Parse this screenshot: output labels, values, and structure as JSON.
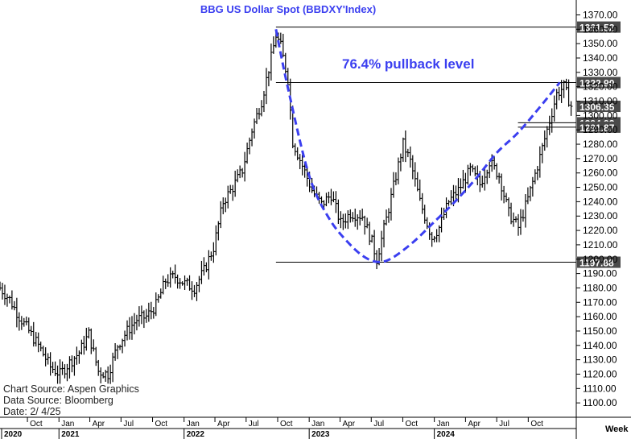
{
  "chart_data": {
    "type": "ohlc",
    "title": "BBG  US  Dollar  Spot  (BBDXY'Index)",
    "annotation": "76.4% pullback level",
    "frequency_label": "Week",
    "y_range": [
      1090,
      1377
    ],
    "y_ticks": [
      1100,
      1110,
      1120,
      1130,
      1140,
      1150,
      1160,
      1170,
      1180,
      1190,
      1200,
      1210,
      1220,
      1230,
      1240,
      1250,
      1260,
      1270,
      1280,
      1290,
      1300,
      1310,
      1320,
      1330,
      1340,
      1350,
      1360,
      1370
    ],
    "x_start": "2020-07-13",
    "x_end": "2025-02-04",
    "month_ticks": [
      {
        "date": "2020-10-01",
        "label": "Oct"
      },
      {
        "date": "2021-01-01",
        "label": "Jan"
      },
      {
        "date": "2021-04-01",
        "label": "Apr"
      },
      {
        "date": "2021-07-01",
        "label": "Jul"
      },
      {
        "date": "2021-10-01",
        "label": "Oct"
      },
      {
        "date": "2022-01-01",
        "label": "Jan"
      },
      {
        "date": "2022-04-01",
        "label": "Apr"
      },
      {
        "date": "2022-07-01",
        "label": "Jul"
      },
      {
        "date": "2022-10-01",
        "label": "Oct"
      },
      {
        "date": "2023-01-01",
        "label": "Jan"
      },
      {
        "date": "2023-04-01",
        "label": "Apr"
      },
      {
        "date": "2023-07-01",
        "label": "Jul"
      },
      {
        "date": "2023-10-01",
        "label": "Oct"
      },
      {
        "date": "2024-01-01",
        "label": "Jan"
      },
      {
        "date": "2024-04-01",
        "label": "Apr"
      },
      {
        "date": "2024-07-01",
        "label": "Jul"
      },
      {
        "date": "2024-10-01",
        "label": "Oct"
      }
    ],
    "year_ticks": [
      {
        "date": "2020-07-13",
        "label": "2020"
      },
      {
        "date": "2021-01-01",
        "label": "2021"
      },
      {
        "date": "2022-01-01",
        "label": "2022"
      },
      {
        "date": "2023-01-01",
        "label": "2023"
      },
      {
        "date": "2024-01-01",
        "label": "2024"
      }
    ],
    "price_path": [
      {
        "date": "2020-07-13",
        "value": 1180
      },
      {
        "date": "2020-08-10",
        "value": 1172
      },
      {
        "date": "2020-09-07",
        "value": 1160
      },
      {
        "date": "2020-10-05",
        "value": 1150
      },
      {
        "date": "2020-11-02",
        "value": 1140
      },
      {
        "date": "2020-12-07",
        "value": 1125
      },
      {
        "date": "2021-01-04",
        "value": 1120
      },
      {
        "date": "2021-02-01",
        "value": 1128
      },
      {
        "date": "2021-03-01",
        "value": 1135
      },
      {
        "date": "2021-03-29",
        "value": 1148
      },
      {
        "date": "2021-04-26",
        "value": 1122
      },
      {
        "date": "2021-05-24",
        "value": 1120
      },
      {
        "date": "2021-06-21",
        "value": 1140
      },
      {
        "date": "2021-07-19",
        "value": 1150
      },
      {
        "date": "2021-08-16",
        "value": 1158
      },
      {
        "date": "2021-09-13",
        "value": 1160
      },
      {
        "date": "2021-10-11",
        "value": 1168
      },
      {
        "date": "2021-11-08",
        "value": 1185
      },
      {
        "date": "2021-12-06",
        "value": 1188
      },
      {
        "date": "2022-01-03",
        "value": 1183
      },
      {
        "date": "2022-01-31",
        "value": 1180
      },
      {
        "date": "2022-02-28",
        "value": 1192
      },
      {
        "date": "2022-03-28",
        "value": 1208
      },
      {
        "date": "2022-04-25",
        "value": 1240
      },
      {
        "date": "2022-05-23",
        "value": 1250
      },
      {
        "date": "2022-06-20",
        "value": 1262
      },
      {
        "date": "2022-07-18",
        "value": 1290
      },
      {
        "date": "2022-08-15",
        "value": 1310
      },
      {
        "date": "2022-09-12",
        "value": 1340
      },
      {
        "date": "2022-09-26",
        "value": 1356
      },
      {
        "date": "2022-10-10",
        "value": 1348
      },
      {
        "date": "2022-10-31",
        "value": 1325
      },
      {
        "date": "2022-11-14",
        "value": 1282
      },
      {
        "date": "2022-12-12",
        "value": 1265
      },
      {
        "date": "2023-01-09",
        "value": 1248
      },
      {
        "date": "2023-02-06",
        "value": 1238
      },
      {
        "date": "2023-03-06",
        "value": 1245
      },
      {
        "date": "2023-04-03",
        "value": 1225
      },
      {
        "date": "2023-05-01",
        "value": 1232
      },
      {
        "date": "2023-06-05",
        "value": 1230
      },
      {
        "date": "2023-07-03",
        "value": 1212
      },
      {
        "date": "2023-07-17",
        "value": 1200
      },
      {
        "date": "2023-08-14",
        "value": 1228
      },
      {
        "date": "2023-09-11",
        "value": 1258
      },
      {
        "date": "2023-10-02",
        "value": 1280
      },
      {
        "date": "2023-10-23",
        "value": 1268
      },
      {
        "date": "2023-11-20",
        "value": 1240
      },
      {
        "date": "2023-12-25",
        "value": 1215
      },
      {
        "date": "2024-01-15",
        "value": 1222
      },
      {
        "date": "2024-02-12",
        "value": 1240
      },
      {
        "date": "2024-03-11",
        "value": 1248
      },
      {
        "date": "2024-04-15",
        "value": 1262
      },
      {
        "date": "2024-05-13",
        "value": 1252
      },
      {
        "date": "2024-06-10",
        "value": 1268
      },
      {
        "date": "2024-07-08",
        "value": 1258
      },
      {
        "date": "2024-08-05",
        "value": 1232
      },
      {
        "date": "2024-09-02",
        "value": 1222
      },
      {
        "date": "2024-09-30",
        "value": 1242
      },
      {
        "date": "2024-10-28",
        "value": 1265
      },
      {
        "date": "2024-11-25",
        "value": 1290
      },
      {
        "date": "2024-12-23",
        "value": 1315
      },
      {
        "date": "2025-01-13",
        "value": 1320
      },
      {
        "date": "2025-02-04",
        "value": 1306
      }
    ],
    "horizontal_lines": [
      {
        "value": 1361.52,
        "label": "1361.52",
        "from": "2022-09-26"
      },
      {
        "value": 1322.9,
        "label": "1322.90",
        "from": "2022-09-26"
      },
      {
        "value": 1197.88,
        "label": "1197.88",
        "from": "2022-09-26"
      },
      {
        "value": 1294.92,
        "label": "1294.92",
        "from": "2024-09-01"
      },
      {
        "value": 1291.87,
        "label": "1291.87",
        "from": "2024-09-01"
      }
    ],
    "last_price": {
      "value": 1306.35,
      "label": "1306.35"
    },
    "cup_curve": [
      {
        "date": "2022-09-26",
        "value": 1360
      },
      {
        "date": "2022-11-01",
        "value": 1318
      },
      {
        "date": "2023-01-01",
        "value": 1258
      },
      {
        "date": "2023-03-01",
        "value": 1228
      },
      {
        "date": "2023-05-01",
        "value": 1210
      },
      {
        "date": "2023-06-15",
        "value": 1201
      },
      {
        "date": "2023-07-24",
        "value": 1198
      },
      {
        "date": "2023-09-01",
        "value": 1201
      },
      {
        "date": "2023-11-01",
        "value": 1212
      },
      {
        "date": "2024-01-01",
        "value": 1226
      },
      {
        "date": "2024-03-01",
        "value": 1240
      },
      {
        "date": "2024-05-01",
        "value": 1256
      },
      {
        "date": "2024-07-01",
        "value": 1274
      },
      {
        "date": "2024-09-01",
        "value": 1288
      },
      {
        "date": "2024-11-01",
        "value": 1305
      },
      {
        "date": "2025-01-01",
        "value": 1323
      }
    ]
  },
  "footer": {
    "line1": "Chart  Source:  Aspen  Graphics",
    "line2": "Data  Source:  Bloomberg",
    "line3": "Date:    2/  4/25"
  },
  "colors": {
    "accent": "#3b3ff0",
    "label_box": "#4a4a4a",
    "bars": "#000000"
  }
}
